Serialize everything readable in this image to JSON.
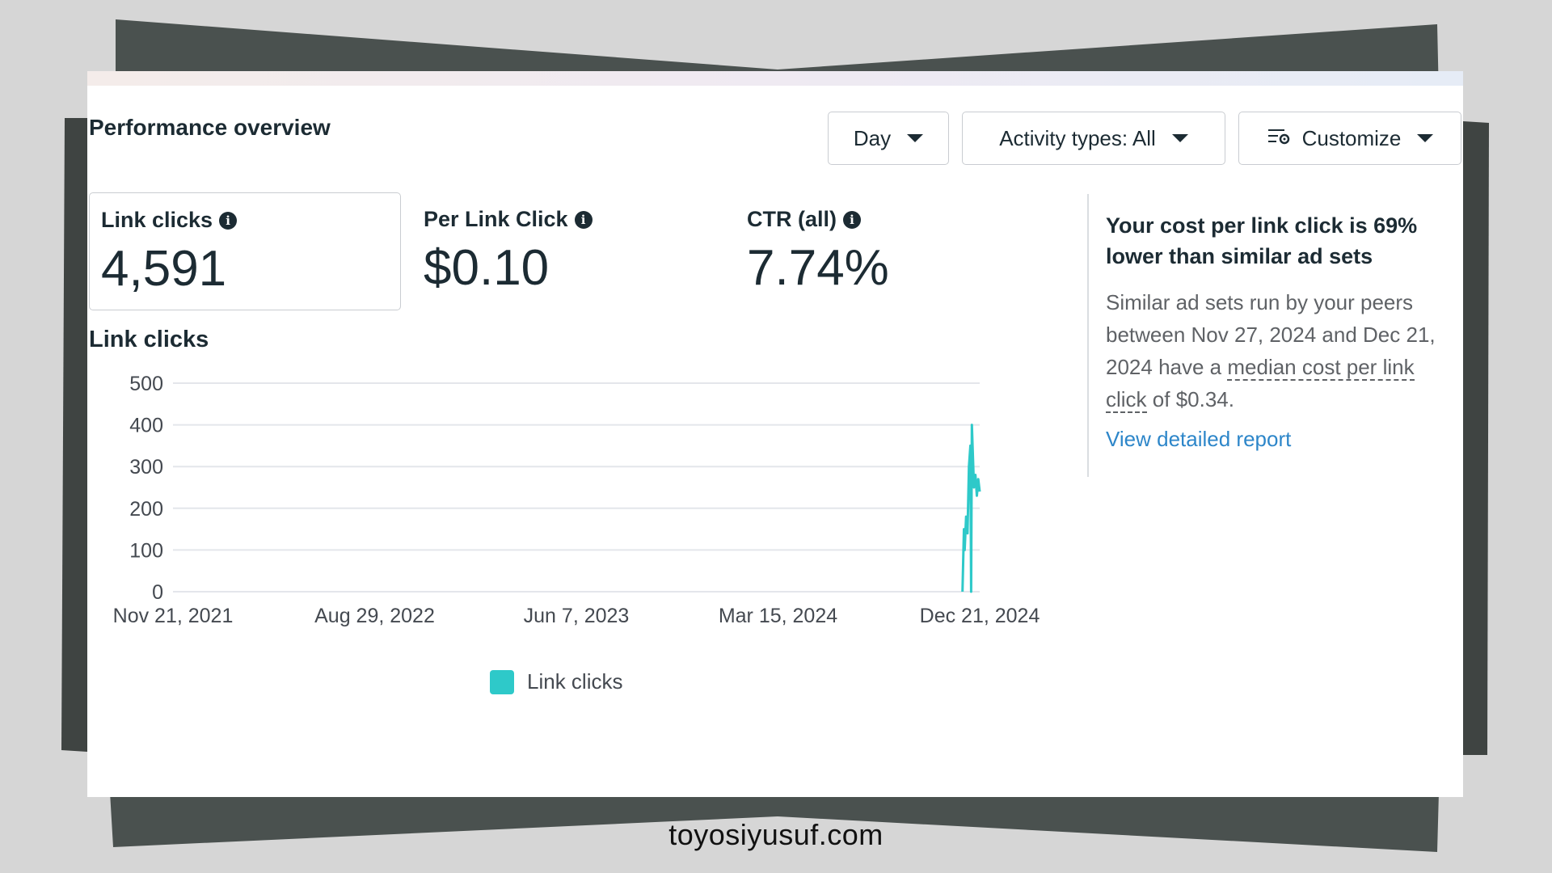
{
  "header": {
    "title": "Performance overview",
    "controls": {
      "day_label": "Day",
      "activity_label": "Activity types: All",
      "customize_label": "Customize"
    }
  },
  "metrics": [
    {
      "label": "Link clicks",
      "value": "4,591"
    },
    {
      "label": "Per Link Click",
      "value": "$0.10"
    },
    {
      "label": "CTR (all)",
      "value": "7.74%"
    }
  ],
  "chart_section": {
    "title": "Link clicks"
  },
  "chart_data": {
    "type": "line",
    "title": "",
    "xlabel": "",
    "ylabel": "",
    "ylim": [
      0,
      500
    ],
    "yticks": [
      "0",
      "100",
      "200",
      "300",
      "400",
      "500"
    ],
    "xticks": [
      "Nov 21, 2021",
      "Aug 29, 2022",
      "Jun 7, 2023",
      "Mar 15, 2024",
      "Dec 21, 2024"
    ],
    "x_range": [
      "2021-11-21",
      "2024-12-21"
    ],
    "grid": true,
    "legend_position": "bottom",
    "series": [
      {
        "name": "Link clicks",
        "color": "#2ec9c9",
        "points": [
          [
            "2024-11-27",
            0
          ],
          [
            "2024-11-29",
            150
          ],
          [
            "2024-11-30",
            100
          ],
          [
            "2024-12-02",
            180
          ],
          [
            "2024-12-04",
            140
          ],
          [
            "2024-12-06",
            300
          ],
          [
            "2024-12-08",
            350
          ],
          [
            "2024-12-09",
            0
          ],
          [
            "2024-12-10",
            400
          ],
          [
            "2024-12-13",
            250
          ],
          [
            "2024-12-15",
            280
          ],
          [
            "2024-12-17",
            230
          ],
          [
            "2024-12-19",
            270
          ],
          [
            "2024-12-21",
            240
          ]
        ]
      }
    ]
  },
  "legend": {
    "label": "Link clicks"
  },
  "insight": {
    "title": "Your cost per link click is 69% lower than similar ad sets",
    "body_part1": "Similar ad sets run by your peers between Nov 27, 2024 and Dec 21, 2024 have a ",
    "body_term": "median cost per link click",
    "body_part2": " of $0.34.",
    "link_label": "View detailed report"
  },
  "footer": {
    "text": "toyosiyusuf.com"
  },
  "colors": {
    "accent": "#2ec9c9",
    "link": "#2d86c9",
    "text": "#1c2b33"
  },
  "icons": {
    "info": "info-icon",
    "customize": "customize-sliders-gear-icon",
    "dropdown": "caret-down-icon"
  }
}
